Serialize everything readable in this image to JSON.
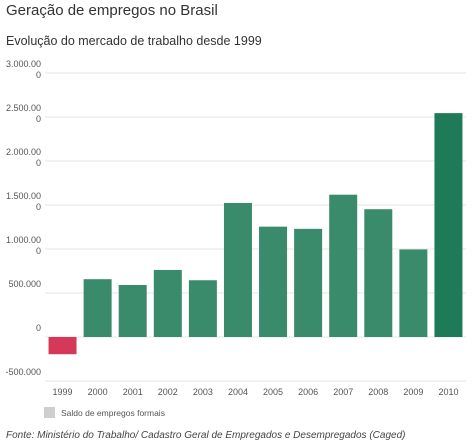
{
  "header": {
    "title": "Geração de empregos no Brasil",
    "subtitle": "Evolução do mercado de trabalho desde 1999"
  },
  "legend": {
    "label": "Saldo de empregos formais",
    "swatch_color": "#cfcfcf"
  },
  "source": "Fonte: Ministério do Trabalho/ Cadastro Geral de Empregados e Desempregados (Caged)",
  "colors": {
    "positive": "#3a8a6c",
    "negative": "#d6385a",
    "highlight": "#1f7a57"
  },
  "chart_data": {
    "type": "bar",
    "categories": [
      "1999",
      "2000",
      "2001",
      "2002",
      "2003",
      "2004",
      "2005",
      "2006",
      "2007",
      "2008",
      "2009",
      "2010"
    ],
    "values": [
      -196000,
      657000,
      591000,
      762000,
      645000,
      1523000,
      1254000,
      1229000,
      1617000,
      1452000,
      995000,
      2544000
    ],
    "ylim": [
      -500000,
      3000000
    ],
    "yticks": [
      -500000,
      0,
      500000,
      1000000,
      1500000,
      2000000,
      2500000,
      3000000
    ],
    "ytick_lines": [
      [
        "-500.000"
      ],
      [
        "0"
      ],
      [
        "500.000"
      ],
      [
        "1.000.00",
        "0"
      ],
      [
        "1.500.00",
        "0"
      ],
      [
        "2.000.00",
        "0"
      ],
      [
        "2.500.00",
        "0"
      ],
      [
        "3.000.00",
        "0"
      ]
    ],
    "grid": true,
    "legend_position": "bottom-left"
  }
}
